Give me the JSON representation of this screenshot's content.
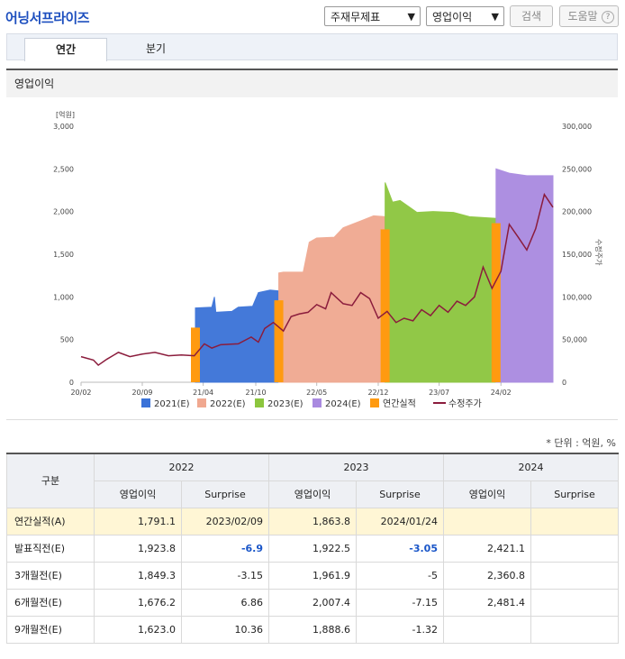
{
  "header": {
    "title": "어닝서프라이즈",
    "select1": "주재무제표",
    "select2": "영업이익",
    "search_btn": "검색",
    "help_btn": "도움말"
  },
  "tabs": [
    {
      "label": "연간"
    },
    {
      "label": "분기"
    }
  ],
  "section_title": "영업이익",
  "chart_data": {
    "type": "area",
    "y_left_unit": "[억원]",
    "y_left_ticks": [
      "3,000",
      "2,500",
      "2,000",
      "1,500",
      "1,000",
      "500",
      "0"
    ],
    "y_left_range": [
      0,
      3000
    ],
    "y_right_label": "수정주가",
    "y_right_ticks": [
      "300,000",
      "250,000",
      "200,000",
      "150,000",
      "100,000",
      "50,000",
      "0"
    ],
    "y_right_range": [
      0,
      300000
    ],
    "x_ticks": [
      "20/02",
      "20/09",
      "21/04",
      "21/10",
      "22/05",
      "22/12",
      "23/07",
      "24/02"
    ],
    "x_range": [
      "2020-02-01",
      "2024-07-31"
    ],
    "estimates": [
      {
        "name": "2021(E)",
        "color": "#3a72d8",
        "start": "2021-03-05",
        "end": "2021-12-20",
        "points": [
          [
            "2021-03-05",
            870
          ],
          [
            "2021-05-01",
            880
          ],
          [
            "2021-05-10",
            1000
          ],
          [
            "2021-05-15",
            820
          ],
          [
            "2021-07-10",
            830
          ],
          [
            "2021-08-01",
            880
          ],
          [
            "2021-09-20",
            890
          ],
          [
            "2021-10-10",
            1050
          ],
          [
            "2021-11-20",
            1080
          ],
          [
            "2021-12-20",
            1070
          ]
        ]
      },
      {
        "name": "2022(E)",
        "color": "#f0a890",
        "start": "2021-12-20",
        "end": "2022-12-25",
        "points": [
          [
            "2021-12-20",
            1280
          ],
          [
            "2022-01-05",
            1290
          ],
          [
            "2022-03-15",
            1290
          ],
          [
            "2022-04-05",
            1640
          ],
          [
            "2022-05-01",
            1690
          ],
          [
            "2022-07-01",
            1700
          ],
          [
            "2022-08-01",
            1810
          ],
          [
            "2022-10-01",
            1890
          ],
          [
            "2022-11-15",
            1950
          ],
          [
            "2022-12-25",
            1940
          ]
        ]
      },
      {
        "name": "2023(E)",
        "color": "#8cc63e",
        "start": "2022-12-25",
        "end": "2024-01-15",
        "points": [
          [
            "2022-12-25",
            2340
          ],
          [
            "2023-01-20",
            2110
          ],
          [
            "2023-02-15",
            2130
          ],
          [
            "2023-04-15",
            1990
          ],
          [
            "2023-06-10",
            2000
          ],
          [
            "2023-08-20",
            1990
          ],
          [
            "2023-10-15",
            1940
          ],
          [
            "2024-01-15",
            1920
          ]
        ]
      },
      {
        "name": "2024(E)",
        "color": "#a98ae0",
        "start": "2024-01-15",
        "end": "2024-07-31",
        "points": [
          [
            "2024-01-15",
            2500
          ],
          [
            "2024-03-01",
            2450
          ],
          [
            "2024-05-01",
            2420
          ],
          [
            "2024-07-31",
            2420
          ]
        ]
      }
    ],
    "actuals": {
      "name": "연간실적",
      "color": "#ff9a10",
      "bars": [
        [
          "2021-03-05",
          640
        ],
        [
          "2021-12-20",
          960
        ],
        [
          "2022-12-25",
          1791.1
        ],
        [
          "2024-01-15",
          1863.8
        ]
      ]
    },
    "price": {
      "name": "수정주가",
      "color": "#8b1c3c",
      "points": [
        [
          "2020-02-01",
          30000
        ],
        [
          "2020-03-15",
          26000
        ],
        [
          "2020-04-01",
          20000
        ],
        [
          "2020-05-01",
          27000
        ],
        [
          "2020-06-10",
          35000
        ],
        [
          "2020-07-20",
          30000
        ],
        [
          "2020-09-01",
          33000
        ],
        [
          "2020-10-15",
          35000
        ],
        [
          "2020-12-01",
          31000
        ],
        [
          "2021-01-15",
          32000
        ],
        [
          "2021-03-01",
          31000
        ],
        [
          "2021-04-05",
          45000
        ],
        [
          "2021-05-01",
          40000
        ],
        [
          "2021-06-01",
          44000
        ],
        [
          "2021-08-01",
          45000
        ],
        [
          "2021-09-15",
          53000
        ],
        [
          "2021-10-10",
          47000
        ],
        [
          "2021-11-01",
          63000
        ],
        [
          "2021-12-01",
          70000
        ],
        [
          "2022-01-05",
          60000
        ],
        [
          "2022-02-01",
          77000
        ],
        [
          "2022-03-01",
          80000
        ],
        [
          "2022-04-01",
          82000
        ],
        [
          "2022-05-01",
          91000
        ],
        [
          "2022-06-01",
          86000
        ],
        [
          "2022-06-20",
          105000
        ],
        [
          "2022-08-01",
          92000
        ],
        [
          "2022-09-01",
          90000
        ],
        [
          "2022-10-01",
          105000
        ],
        [
          "2022-11-01",
          98000
        ],
        [
          "2022-12-01",
          75000
        ],
        [
          "2023-01-01",
          83000
        ],
        [
          "2023-02-01",
          70000
        ],
        [
          "2023-03-01",
          75000
        ],
        [
          "2023-04-01",
          72000
        ],
        [
          "2023-05-01",
          85000
        ],
        [
          "2023-06-01",
          78000
        ],
        [
          "2023-07-01",
          90000
        ],
        [
          "2023-08-01",
          82000
        ],
        [
          "2023-09-01",
          95000
        ],
        [
          "2023-10-01",
          90000
        ],
        [
          "2023-11-01",
          100000
        ],
        [
          "2023-12-01",
          135000
        ],
        [
          "2024-01-01",
          110000
        ],
        [
          "2024-02-01",
          130000
        ],
        [
          "2024-03-01",
          185000
        ],
        [
          "2024-04-01",
          170000
        ],
        [
          "2024-05-01",
          155000
        ],
        [
          "2024-06-01",
          180000
        ],
        [
          "2024-07-01",
          220000
        ],
        [
          "2024-07-31",
          205000
        ]
      ]
    },
    "legend": [
      "2021(E)",
      "2022(E)",
      "2023(E)",
      "2024(E)",
      "연간실적",
      "수정주가"
    ],
    "legend_position": "bottom"
  },
  "unit_note": "* 단위 : 억원, %",
  "table": {
    "col_header": "구분",
    "years": [
      "2022",
      "2023",
      "2024"
    ],
    "sub_headers": [
      "영업이익",
      "Surprise"
    ],
    "rows": [
      {
        "label": "연간실적(A)",
        "cells": [
          "1,791.1",
          "2023/02/09",
          "1,863.8",
          "2024/01/24",
          "",
          ""
        ]
      },
      {
        "label": "발표직전(E)",
        "cells": [
          "1,923.8",
          "-6.9",
          "1,922.5",
          "-3.05",
          "2,421.1",
          ""
        ]
      },
      {
        "label": "3개월전(E)",
        "cells": [
          "1,849.3",
          "-3.15",
          "1,961.9",
          "-5",
          "2,360.8",
          ""
        ]
      },
      {
        "label": "6개월전(E)",
        "cells": [
          "1,676.2",
          "6.86",
          "2,007.4",
          "-7.15",
          "2,481.4",
          ""
        ]
      },
      {
        "label": "9개월전(E)",
        "cells": [
          "1,623.0",
          "10.36",
          "1,888.6",
          "-1.32",
          "",
          ""
        ]
      }
    ]
  }
}
